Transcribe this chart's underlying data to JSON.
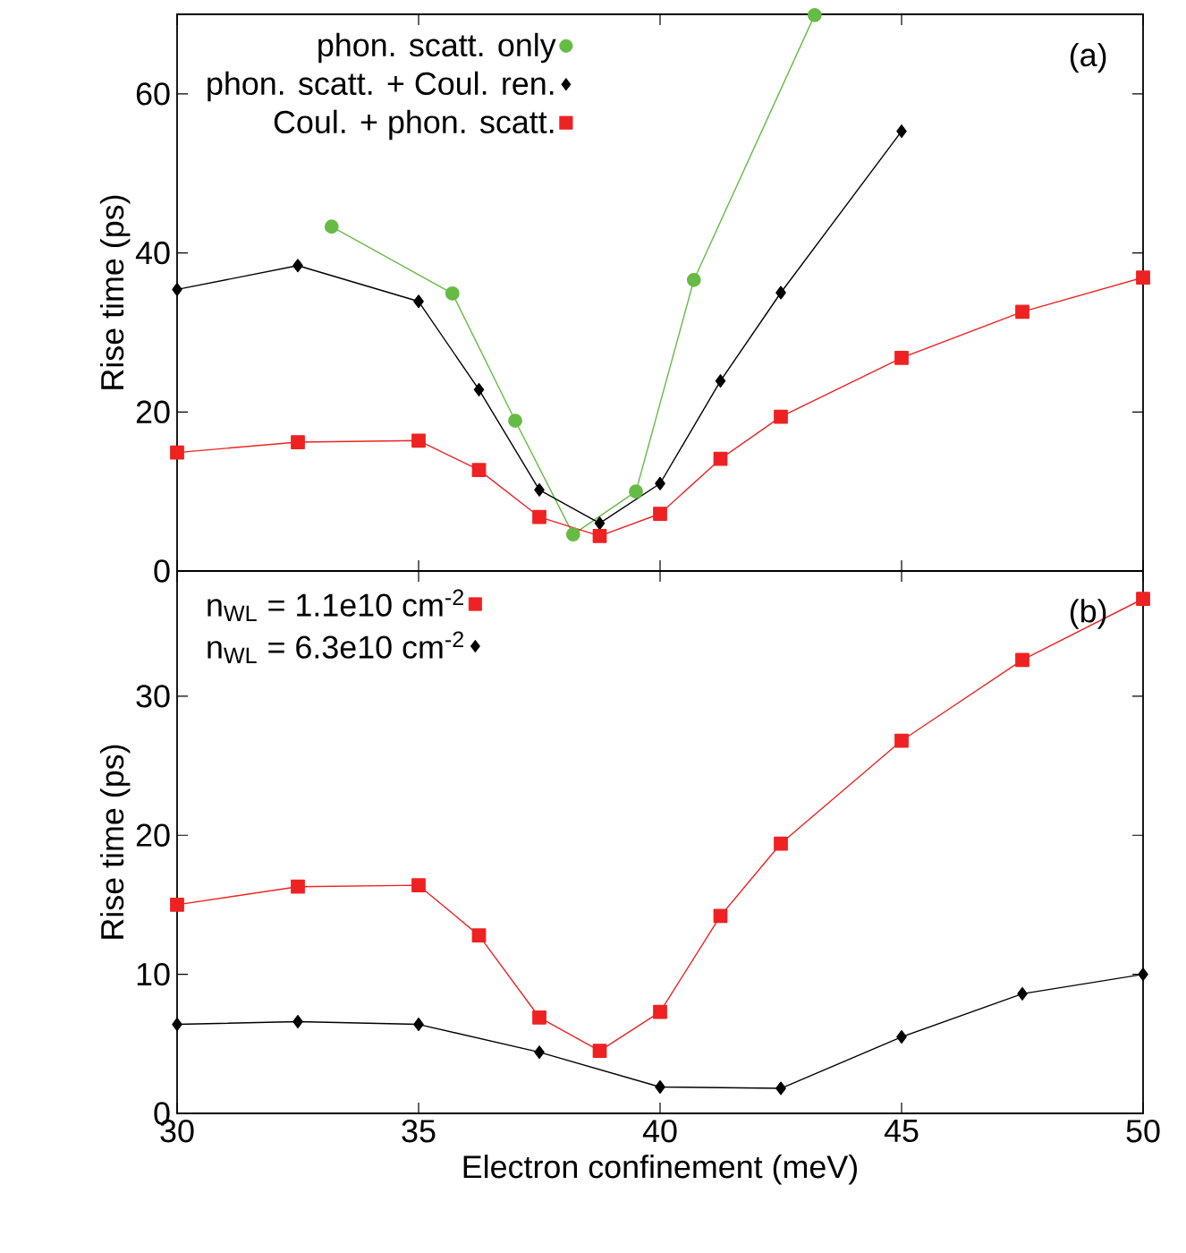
{
  "chart_data": [
    {
      "type": "line",
      "ylabel": "Rise time (ps)",
      "xlim": [
        30,
        50
      ],
      "xticks": [
        30,
        35,
        40,
        45,
        50
      ],
      "ylim": [
        0,
        70
      ],
      "yticks": [
        0,
        20,
        40,
        60
      ],
      "tick_labels": "y",
      "legend": "top left",
      "grid": false,
      "line_style": "solid",
      "annotations": [
        "(a)"
      ],
      "x": [
        30,
        32.5,
        35,
        36.25,
        37.5,
        38.75,
        40,
        41.25,
        42.5,
        45,
        47.5,
        50
      ],
      "series": [
        {
          "name": "phon. scatt. only",
          "color": "#66bb44",
          "marker": "circle",
          "x": [
            33.2,
            35.7,
            37.0,
            38.2,
            39.5,
            40.7,
            43.2
          ],
          "values": [
            43.3,
            34.9,
            18.9,
            4.6,
            10.0,
            36.6,
            69.9
          ]
        },
        {
          "name": "phon. scatt. + Coul. ren.",
          "color": "#000000",
          "marker": "diamond",
          "values": [
            35.4,
            38.4,
            33.9,
            22.8,
            10.2,
            6.0,
            11.0,
            23.9,
            35.0,
            55.3,
            null,
            null
          ]
        },
        {
          "name": "Coul. + phon. scatt.",
          "color": "#ee2222",
          "marker": "square",
          "values": [
            14.9,
            16.2,
            16.4,
            12.7,
            6.8,
            4.4,
            7.2,
            14.1,
            19.4,
            26.8,
            32.6,
            36.9
          ]
        }
      ]
    },
    {
      "type": "line",
      "xlabel": "Electron confinement (meV)",
      "ylabel": "Rise time (ps)",
      "xlim": [
        30,
        50
      ],
      "xticks": [
        30,
        35,
        40,
        45,
        50
      ],
      "ylim": [
        0,
        39
      ],
      "yticks": [
        0,
        10,
        20,
        30
      ],
      "legend": "top left",
      "grid": false,
      "line_style": "solid",
      "annotations": [
        "(b)"
      ],
      "series": [
        {
          "name": "n$_{WL}$ = 1.1e10 cm$^{-2}$",
          "color": "#ee2222",
          "marker": "square",
          "x": [
            30,
            32.5,
            35,
            36.25,
            37.5,
            38.75,
            40,
            41.25,
            42.5,
            45,
            47.5,
            50
          ],
          "values": [
            15.0,
            16.3,
            16.4,
            12.8,
            6.9,
            4.5,
            7.3,
            14.2,
            19.4,
            26.8,
            32.6,
            37.0
          ]
        },
        {
          "name": "n$_{WL}$ = 6.3e10 cm$^{-2}$",
          "color": "#000000",
          "marker": "diamond",
          "x": [
            30,
            32.5,
            35,
            37.5,
            40,
            42.5,
            45,
            47.5,
            50
          ],
          "values": [
            6.4,
            6.6,
            6.4,
            4.4,
            1.9,
            1.8,
            5.5,
            8.6,
            10.0
          ]
        }
      ]
    }
  ]
}
